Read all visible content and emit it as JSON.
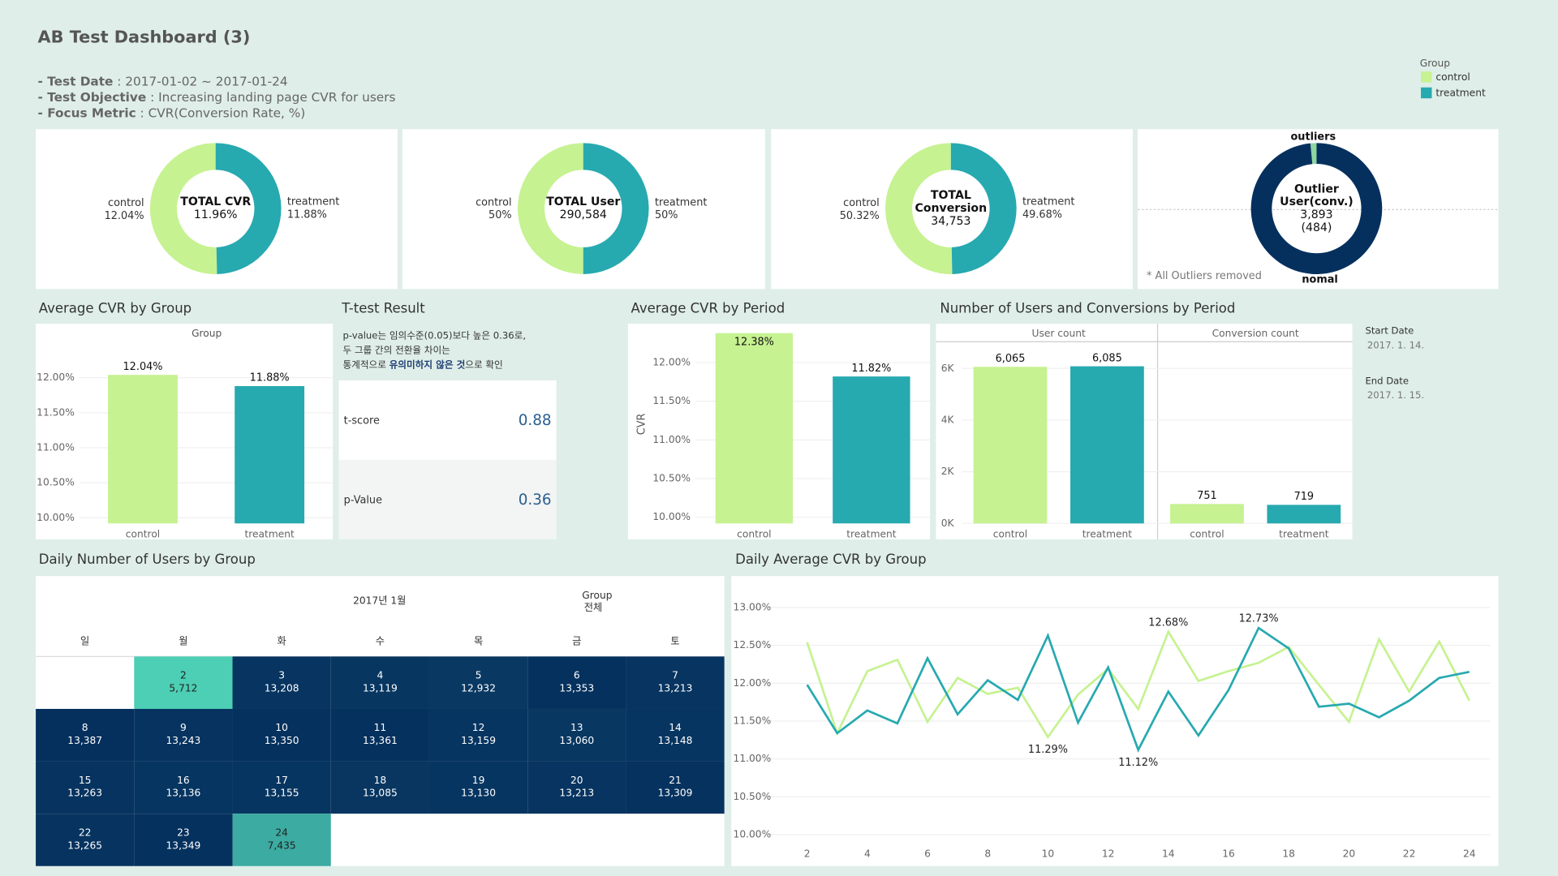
{
  "header": {
    "title": "AB Test Dashboard (3)",
    "info": [
      {
        "label": "- Test Date",
        "value": " : 2017-01-02 ~ 2017-01-24"
      },
      {
        "label": "- Test Objective",
        "value": " : Increasing landing page CVR for users"
      },
      {
        "label": "- Focus Metric",
        "value": " : CVR(Conversion Rate, %)"
      }
    ]
  },
  "legend": {
    "title": "Group"
  },
  "ttest": {
    "title": "T-test Result",
    "note": [
      "p-value는 임의수준(0.05)보다 높은 0.36로,",
      "두 그룹 간의 전환율 차이는"
    ],
    "note_last": {
      "before": "통계적으로 ",
      "bold": "유의미하지 않은 것",
      "after": "으로 확인"
    },
    "rows": [
      {
        "label": "t-score",
        "value": 0.88
      },
      {
        "label": "p-Value",
        "value": 0.36
      }
    ]
  },
  "period": {
    "start_label": "Start Date",
    "start": "2017. 1. 14.",
    "end_label": "End Date",
    "end": "2017. 1. 15."
  },
  "chart_data": [
    {
      "type": "pie",
      "center": [
        "TOTAL CVR",
        "11.96%"
      ],
      "categories": [
        "control",
        "treatment"
      ],
      "values": [
        12.04,
        11.88
      ],
      "value_labels": [
        "12.04%",
        "11.88%"
      ],
      "colors": [
        "#c6f291",
        "#27a9b0"
      ]
    },
    {
      "type": "pie",
      "center": [
        "TOTAL User",
        "290,584"
      ],
      "categories": [
        "control",
        "treatment"
      ],
      "values": [
        50,
        50
      ],
      "value_labels": [
        "50%",
        "50%"
      ],
      "colors": [
        "#c6f291",
        "#27a9b0"
      ]
    },
    {
      "type": "pie",
      "center": [
        "TOTAL",
        "Conversion",
        "34,753"
      ],
      "categories": [
        "control",
        "treatment"
      ],
      "values": [
        50.32,
        49.68
      ],
      "value_labels": [
        "50.32%",
        "49.68%"
      ],
      "colors": [
        "#c6f291",
        "#27a9b0"
      ]
    },
    {
      "type": "pie",
      "center": [
        "Outlier",
        "User(conv.)",
        "3,893",
        "(484)"
      ],
      "categories": [
        "outliers",
        "nomal"
      ],
      "values": [
        1.5,
        98.5
      ],
      "colors": [
        "#8fd6a2",
        "#05305e"
      ],
      "note": "* All Outliers removed"
    },
    {
      "type": "bar",
      "title": "Average CVR by Group",
      "subtitle": "Group",
      "categories": [
        "control",
        "treatment"
      ],
      "values": [
        12.04,
        11.88
      ],
      "value_labels": [
        "12.04%",
        "11.88%"
      ],
      "colors": [
        "#c6f291",
        "#27a9b0"
      ],
      "ylim": [
        9.92,
        12.5
      ],
      "yticks": [
        {
          "value": 10,
          "label": "10.00%"
        },
        {
          "value": 10.5,
          "label": "10.50%"
        },
        {
          "value": 11,
          "label": "11.00%"
        },
        {
          "value": 11.5,
          "label": "11.50%"
        },
        {
          "value": 12,
          "label": "12.00%"
        }
      ]
    },
    {
      "type": "bar",
      "title": "Average CVR by Period",
      "y_label": "CVR",
      "categories": [
        "control",
        "treatment"
      ],
      "values": [
        12.38,
        11.82
      ],
      "value_labels": [
        "12.38%",
        "11.82%"
      ],
      "colors": [
        "#c6f291",
        "#27a9b0"
      ],
      "ylim": [
        9.92,
        12.45
      ],
      "yticks": [
        {
          "value": 10,
          "label": "10.00%"
        },
        {
          "value": 10.5,
          "label": "10.50%"
        },
        {
          "value": 11,
          "label": "11.00%"
        },
        {
          "value": 11.5,
          "label": "11.50%"
        },
        {
          "value": 12,
          "label": "12.00%"
        }
      ]
    },
    {
      "type": "bar",
      "title": "Number of Users and Conversions by Period",
      "categories": [
        "control",
        "treatment"
      ],
      "colors": [
        "#c6f291",
        "#27a9b0"
      ],
      "facets": [
        {
          "name": "User count",
          "values": [
            6065,
            6085
          ],
          "value_labels": [
            "6,065",
            "6,085"
          ]
        },
        {
          "name": "Conversion count",
          "values": [
            751,
            719
          ]
        }
      ],
      "ylim": [
        0,
        7000
      ],
      "yticks": [
        {
          "value": 0,
          "label": "0K"
        },
        {
          "value": 2000,
          "label": "2K"
        },
        {
          "value": 4000,
          "label": "4K"
        },
        {
          "value": 6000,
          "label": "6K"
        }
      ]
    },
    {
      "type": "calendar",
      "title": "Daily Number of Users by Group",
      "month_label": "2017년 1월",
      "group_label": "Group",
      "group_value": "전체",
      "weekdays": [
        "일",
        "월",
        "화",
        "수",
        "목",
        "금",
        "토"
      ],
      "days": [
        2,
        3,
        4,
        5,
        6,
        7,
        8,
        9,
        10,
        11,
        12,
        13,
        14,
        15,
        16,
        17,
        18,
        19,
        20,
        21,
        22,
        23,
        24
      ],
      "values": [
        5712,
        13208,
        13119,
        12932,
        13353,
        13213,
        13387,
        13243,
        13350,
        13361,
        13159,
        13060,
        13148,
        13263,
        13136,
        13155,
        13085,
        13130,
        13213,
        13309,
        13265,
        13349,
        7435
      ],
      "value_labels": [
        "5,712",
        "13,208",
        "13,119",
        "12,932",
        "13,353",
        "13,213",
        "13,387",
        "13,243",
        "13,350",
        "13,361",
        "13,159",
        "13,060",
        "13,148",
        "13,263",
        "13,136",
        "13,155",
        "13,085",
        "13,130",
        "13,213",
        "13,309",
        "13,265",
        "13,349",
        "7,435"
      ],
      "color_range": [
        "#4ccfb4",
        "#05305e"
      ]
    },
    {
      "type": "line",
      "title": "Daily Average CVR by Group",
      "x": [
        2,
        3,
        4,
        5,
        6,
        7,
        8,
        9,
        10,
        11,
        12,
        13,
        14,
        15,
        16,
        17,
        18,
        19,
        20,
        21,
        22,
        23,
        24
      ],
      "series": [
        {
          "name": "control",
          "color": "#c6f291",
          "values": [
            12.54,
            11.34,
            12.16,
            12.31,
            11.49,
            12.07,
            11.86,
            11.94,
            11.29,
            11.85,
            12.19,
            11.66,
            12.68,
            12.03,
            12.16,
            12.27,
            12.48,
            11.98,
            11.49,
            12.58,
            11.89,
            12.55,
            11.77
          ],
          "value_labels": [
            null,
            null,
            null,
            null,
            null,
            null,
            null,
            null,
            "11.29%",
            null,
            null,
            null,
            "12.68%",
            null,
            null,
            null,
            null,
            null,
            null,
            null,
            null,
            null,
            null
          ]
        },
        {
          "name": "treatment",
          "color": "#27a9b0",
          "values": [
            11.98,
            11.34,
            11.64,
            11.47,
            12.33,
            11.59,
            12.04,
            11.78,
            12.63,
            11.48,
            12.21,
            11.12,
            11.89,
            11.31,
            11.91,
            12.73,
            12.46,
            11.69,
            11.73,
            11.55,
            11.77,
            12.07,
            12.15
          ],
          "value_labels": [
            null,
            null,
            null,
            null,
            null,
            null,
            null,
            null,
            null,
            null,
            null,
            "11.12%",
            null,
            null,
            null,
            "12.73%",
            null,
            null,
            null,
            null,
            null,
            null,
            null
          ]
        }
      ],
      "xlim": [
        1,
        24.7
      ],
      "xticks": [
        2,
        4,
        6,
        8,
        10,
        12,
        14,
        16,
        18,
        20,
        22,
        24
      ],
      "ylim": [
        9.9,
        13.35
      ],
      "yticks": [
        {
          "value": 10,
          "label": "10.00%"
        },
        {
          "value": 10.5,
          "label": "10.50%"
        },
        {
          "value": 11,
          "label": "11.00%"
        },
        {
          "value": 11.5,
          "label": "11.50%"
        },
        {
          "value": 12,
          "label": "12.00%"
        },
        {
          "value": 12.5,
          "label": "12.50%"
        },
        {
          "value": 13,
          "label": "13.00%"
        }
      ],
      "grid": true
    }
  ]
}
